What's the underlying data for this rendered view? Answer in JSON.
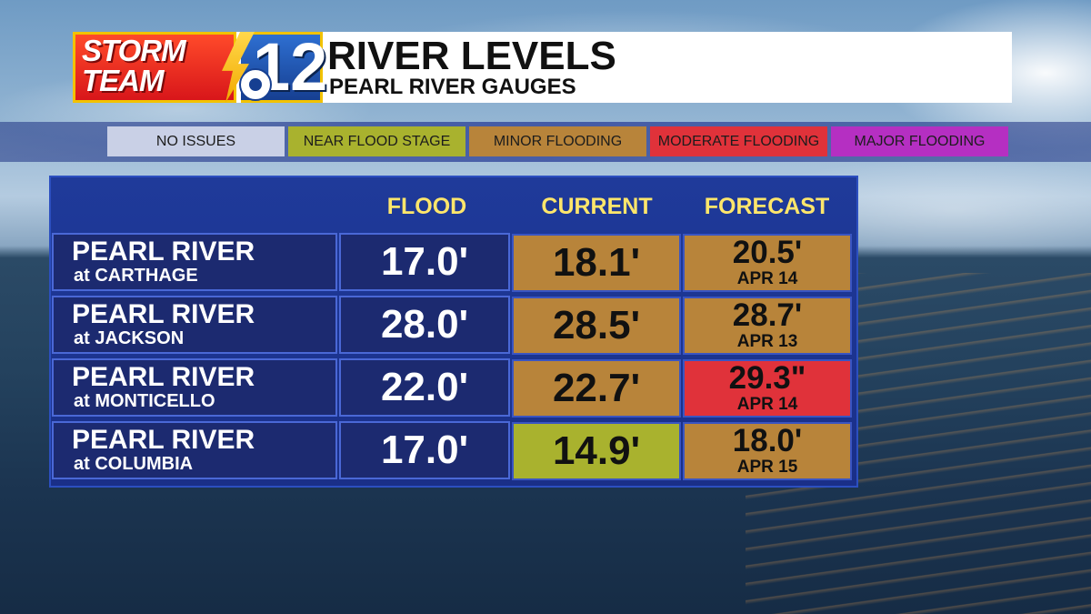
{
  "brand": {
    "logo_line1": "STORM",
    "logo_line2": "TEAM",
    "logo_number": "12",
    "colors": {
      "red": "#d8161a",
      "blue": "#163f91",
      "gold": "#f2c200"
    }
  },
  "header": {
    "title": "RIVER LEVELS",
    "subtitle": "PEARL RIVER GAUGES"
  },
  "legend": [
    {
      "label": "NO ISSUES",
      "color": "#c9d0e6"
    },
    {
      "label": "NEAR FLOOD STAGE",
      "color": "#a9b22e"
    },
    {
      "label": "MINOR FLOODING",
      "color": "#b8843a"
    },
    {
      "label": "MODERATE FLOODING",
      "color": "#e0323a"
    },
    {
      "label": "MAJOR FLOODING",
      "color": "#b52fc2"
    }
  ],
  "table": {
    "columns": [
      "FLOOD",
      "CURRENT",
      "FORECAST"
    ],
    "rows": [
      {
        "river": "PEARL RIVER",
        "location": "at CARTHAGE",
        "flood": "17.0'",
        "current": "18.1'",
        "current_status": "MINOR FLOODING",
        "forecast": "20.5'",
        "forecast_date": "APR 14",
        "forecast_status": "MINOR FLOODING"
      },
      {
        "river": "PEARL RIVER",
        "location": "at JACKSON",
        "flood": "28.0'",
        "current": "28.5'",
        "current_status": "MINOR FLOODING",
        "forecast": "28.7'",
        "forecast_date": "APR 13",
        "forecast_status": "MINOR FLOODING"
      },
      {
        "river": "PEARL RIVER",
        "location": "at MONTICELLO",
        "flood": "22.0'",
        "current": "22.7'",
        "current_status": "MINOR FLOODING",
        "forecast": "29.3\"",
        "forecast_date": "APR 14",
        "forecast_status": "MODERATE FLOODING"
      },
      {
        "river": "PEARL RIVER",
        "location": "at COLUMBIA",
        "flood": "17.0'",
        "current": "14.9'",
        "current_status": "NEAR FLOOD STAGE",
        "forecast": "18.0'",
        "forecast_date": "APR 15",
        "forecast_status": "MINOR FLOODING"
      }
    ]
  }
}
